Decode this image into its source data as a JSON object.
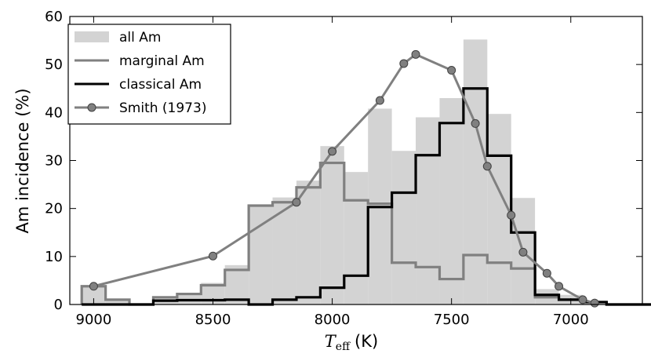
{
  "chart_data": {
    "type": "bar",
    "xlabel_math": "T",
    "xlabel_sub": "eff",
    "xlabel_unit": "(K)",
    "ylabel": "Am incidence (%)",
    "xlim": [
      9100,
      6700
    ],
    "ylim": [
      0,
      60
    ],
    "x_ticks": [
      9000,
      8500,
      8000,
      7500,
      7000
    ],
    "y_ticks": [
      0,
      10,
      20,
      30,
      40,
      50,
      60
    ],
    "x_tick_labels": [
      "9000",
      "8500",
      "8000",
      "7500",
      "7000"
    ],
    "y_tick_labels": [
      "0",
      "10",
      "20",
      "30",
      "40",
      "50",
      "60"
    ],
    "legend_position": "upper-left",
    "bin_edges": [
      9050,
      8950,
      8850,
      8750,
      8650,
      8550,
      8450,
      8350,
      8250,
      8150,
      8050,
      7950,
      7850,
      7750,
      7650,
      7550,
      7450,
      7350,
      7250,
      7150,
      7050,
      6950,
      6850,
      6750,
      6650
    ],
    "series": [
      {
        "name": "all Am",
        "style": "filled-histogram",
        "color": "#d3d3d3",
        "values": [
          3.8,
          1.0,
          0,
          1.5,
          2.2,
          4.5,
          8.2,
          20.7,
          22.3,
          25.8,
          33.0,
          27.6,
          40.8,
          32.0,
          39.0,
          43.0,
          55.2,
          39.7,
          22.2,
          3.2,
          2.0,
          0.8,
          0,
          0
        ]
      },
      {
        "name": "marginal Am",
        "style": "step",
        "color": "#808080",
        "values": [
          3.8,
          1.0,
          0,
          1.5,
          2.2,
          4.0,
          7.2,
          20.6,
          21.3,
          24.4,
          29.5,
          21.7,
          21.0,
          8.7,
          7.8,
          5.3,
          10.3,
          8.7,
          7.5,
          1.5,
          1.0,
          0.5,
          0,
          0
        ]
      },
      {
        "name": "classical Am",
        "style": "step",
        "color": "#000000",
        "values": [
          0,
          0,
          0,
          0.8,
          0.9,
          0.9,
          1.0,
          0,
          1.0,
          1.5,
          3.5,
          6.0,
          20.3,
          23.3,
          31.1,
          37.8,
          45.0,
          31.0,
          15.0,
          2.0,
          1.0,
          0.5,
          0,
          0
        ]
      },
      {
        "name": "Smith (1973)",
        "style": "line-markers",
        "color": "#808080",
        "marker_color": "#808080",
        "points": [
          [
            9000,
            3.8
          ],
          [
            8500,
            10.1
          ],
          [
            8150,
            21.3
          ],
          [
            8000,
            31.9
          ],
          [
            7800,
            42.5
          ],
          [
            7700,
            50.2
          ],
          [
            7650,
            52.1
          ],
          [
            7500,
            48.8
          ],
          [
            7400,
            37.7
          ],
          [
            7350,
            28.8
          ],
          [
            7250,
            18.6
          ],
          [
            7200,
            10.9
          ],
          [
            7100,
            6.5
          ],
          [
            7050,
            3.8
          ],
          [
            6950,
            1.0
          ],
          [
            6900,
            0.3
          ]
        ]
      }
    ]
  }
}
